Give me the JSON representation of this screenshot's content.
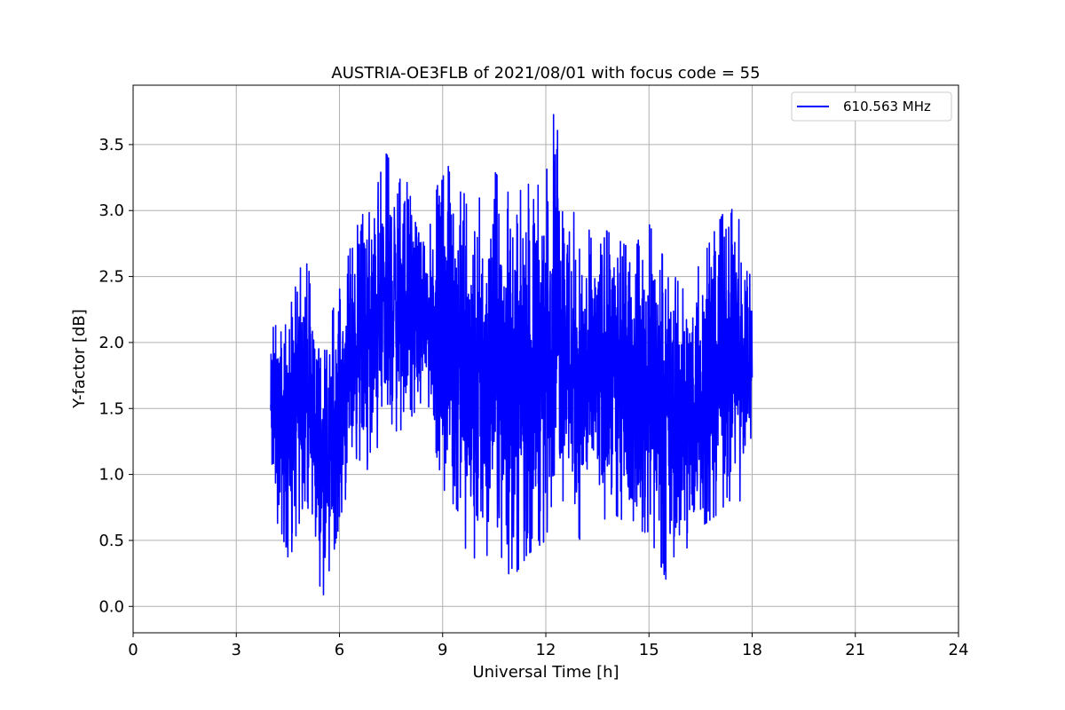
{
  "chart_data": {
    "type": "line",
    "title": "AUSTRIA-OE3FLB of 2021/08/01 with focus code = 55",
    "xlabel": "Universal Time [h]",
    "ylabel": "Y-factor [dB]",
    "xlim": [
      0,
      24
    ],
    "ylim": [
      -0.2,
      3.95
    ],
    "xticks": [
      0,
      3,
      6,
      9,
      12,
      15,
      18,
      21,
      24
    ],
    "xtick_labels": [
      "0",
      "3",
      "6",
      "9",
      "12",
      "15",
      "18",
      "21",
      "24"
    ],
    "yticks": [
      0.0,
      0.5,
      1.0,
      1.5,
      2.0,
      2.5,
      3.0,
      3.5
    ],
    "ytick_labels": [
      "0.0",
      "0.5",
      "1.0",
      "1.5",
      "2.0",
      "2.5",
      "3.0",
      "3.5"
    ],
    "grid": true,
    "legend_position": "top-right",
    "series": [
      {
        "name": "610.563 MHz",
        "color": "#0000ff",
        "x_range": [
          4.0,
          18.0
        ],
        "envelope": [
          {
            "x": 4.0,
            "min": 0.85,
            "max": 2.1
          },
          {
            "x": 4.5,
            "min": 0.3,
            "max": 2.2
          },
          {
            "x": 5.0,
            "min": 0.8,
            "max": 2.7
          },
          {
            "x": 5.5,
            "min": 0.05,
            "max": 2.0
          },
          {
            "x": 6.0,
            "min": 0.6,
            "max": 2.4
          },
          {
            "x": 6.5,
            "min": 1.1,
            "max": 2.9
          },
          {
            "x": 7.0,
            "min": 1.0,
            "max": 3.1
          },
          {
            "x": 7.3,
            "min": 1.2,
            "max": 3.45
          },
          {
            "x": 8.0,
            "min": 1.4,
            "max": 3.2
          },
          {
            "x": 8.5,
            "min": 1.6,
            "max": 2.7
          },
          {
            "x": 9.0,
            "min": 0.9,
            "max": 3.4
          },
          {
            "x": 9.5,
            "min": 0.7,
            "max": 3.2
          },
          {
            "x": 9.85,
            "min": 0.15,
            "max": 3.0
          },
          {
            "x": 10.5,
            "min": 0.5,
            "max": 3.3
          },
          {
            "x": 11.0,
            "min": 0.2,
            "max": 3.1
          },
          {
            "x": 11.5,
            "min": 0.4,
            "max": 3.2
          },
          {
            "x": 12.0,
            "min": 0.5,
            "max": 3.25
          },
          {
            "x": 12.25,
            "min": 0.9,
            "max": 3.78
          },
          {
            "x": 12.5,
            "min": 0.8,
            "max": 3.3
          },
          {
            "x": 13.0,
            "min": 0.5,
            "max": 2.8
          },
          {
            "x": 13.5,
            "min": 0.6,
            "max": 2.9
          },
          {
            "x": 14.0,
            "min": 0.7,
            "max": 2.8
          },
          {
            "x": 14.5,
            "min": 0.6,
            "max": 2.7
          },
          {
            "x": 15.0,
            "min": 0.55,
            "max": 2.9
          },
          {
            "x": 15.5,
            "min": 0.2,
            "max": 2.6
          },
          {
            "x": 16.0,
            "min": 0.4,
            "max": 2.4
          },
          {
            "x": 16.5,
            "min": 0.6,
            "max": 2.6
          },
          {
            "x": 17.0,
            "min": 0.7,
            "max": 2.9
          },
          {
            "x": 17.3,
            "min": 0.8,
            "max": 3.05
          },
          {
            "x": 17.7,
            "min": 0.8,
            "max": 2.9
          },
          {
            "x": 18.0,
            "min": 1.2,
            "max": 2.4
          }
        ]
      }
    ]
  }
}
